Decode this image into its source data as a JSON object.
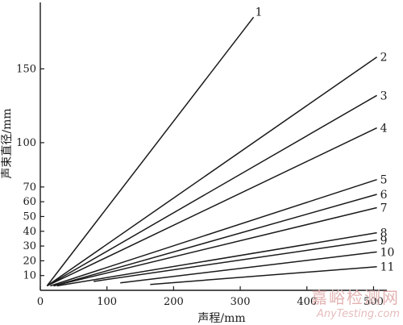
{
  "chart_data": {
    "type": "line",
    "xlabel": "声程/mm",
    "ylabel": "声束直径/mm",
    "xlim": [
      0,
      520
    ],
    "ylim": [
      0,
      195
    ],
    "x_ticks": [
      0,
      100,
      200,
      300,
      400,
      500
    ],
    "y_ticks": [
      10,
      20,
      30,
      40,
      50,
      60,
      70,
      100,
      150
    ],
    "grid": false,
    "series": [
      {
        "name": "1",
        "x": [
          10,
          320
        ],
        "y": [
          3,
          185
        ]
      },
      {
        "name": "2",
        "x": [
          10,
          505
        ],
        "y": [
          3,
          158
        ]
      },
      {
        "name": "3",
        "x": [
          10,
          505
        ],
        "y": [
          3,
          132
        ]
      },
      {
        "name": "4",
        "x": [
          10,
          505
        ],
        "y": [
          3,
          110
        ]
      },
      {
        "name": "5",
        "x": [
          15,
          505
        ],
        "y": [
          3,
          75
        ]
      },
      {
        "name": "6",
        "x": [
          20,
          505
        ],
        "y": [
          3,
          65
        ]
      },
      {
        "name": "7",
        "x": [
          20,
          505
        ],
        "y": [
          3,
          56
        ]
      },
      {
        "name": "8",
        "x": [
          25,
          505
        ],
        "y": [
          3,
          39
        ]
      },
      {
        "name": "9",
        "x": [
          80,
          505
        ],
        "y": [
          6,
          34
        ]
      },
      {
        "name": "10",
        "x": [
          120,
          505
        ],
        "y": [
          5,
          26
        ]
      },
      {
        "name": "11",
        "x": [
          165,
          505
        ],
        "y": [
          4,
          16
        ]
      }
    ]
  },
  "watermark": {
    "cn": "嘉峪检测网",
    "en": "AnyTesting.com"
  }
}
